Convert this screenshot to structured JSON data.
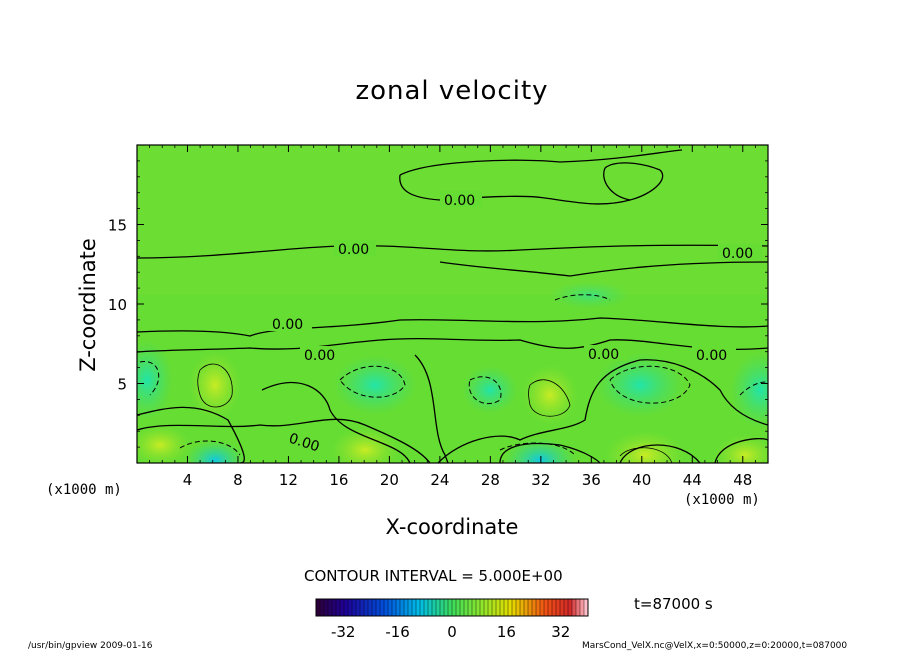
{
  "chart_data": {
    "type": "heatmap",
    "title": "zonal velocity",
    "xlabel": "X-coordinate",
    "ylabel": "Z-coordinate",
    "x_unit_left": "(x1000 m)",
    "x_unit_right": "(x1000 m)",
    "xlim": [
      0,
      50
    ],
    "ylim": [
      0,
      20
    ],
    "x_ticks": [
      4,
      8,
      12,
      16,
      20,
      24,
      28,
      32,
      36,
      40,
      44,
      48
    ],
    "y_ticks": [
      5,
      10,
      15
    ],
    "contour_labels": [
      "0.00",
      "0.00",
      "0.00",
      "0.00",
      "0.00",
      "0.00",
      "0.00",
      "0.00"
    ],
    "contour_interval": "CONTOUR INTERVAL = 5.000E+00",
    "colorbar": {
      "ticks": [
        "-32",
        "-16",
        "0",
        "16",
        "32"
      ],
      "min": -40,
      "max": 40
    },
    "time_label": "t=87000 s",
    "colors": {
      "background_field": "#66dd33",
      "positive": "#ccee22",
      "negative": "#22dd99"
    }
  },
  "footer": {
    "left": "/usr/bin/gpview  2009-01-16",
    "right": "MarsCond_VelX.nc@VelX,x=0:50000,z=0:20000,t=087000"
  }
}
